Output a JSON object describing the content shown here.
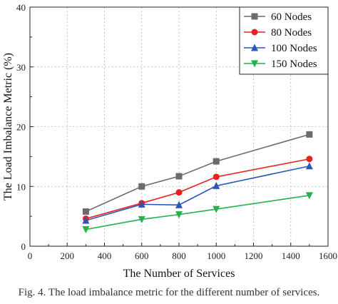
{
  "chart_data": {
    "type": "line",
    "xlabel": "The Number of Services",
    "ylabel": "The Load Imbalance Metric (%)",
    "xlim": [
      0,
      1600
    ],
    "ylim": [
      0,
      40
    ],
    "xticks": [
      0,
      200,
      400,
      600,
      800,
      1000,
      1200,
      1400,
      1600
    ],
    "yticks": [
      0,
      10,
      20,
      30,
      40
    ],
    "grid": true,
    "legend_position": "top-right",
    "x": [
      300,
      600,
      800,
      1000,
      1500
    ],
    "series": [
      {
        "name": "60 Nodes",
        "values": [
          5.8,
          10.0,
          11.7,
          14.2,
          18.7
        ],
        "color": "#6b6b6b",
        "marker": "square"
      },
      {
        "name": "80 Nodes",
        "values": [
          4.6,
          7.2,
          9.0,
          11.6,
          14.6
        ],
        "color": "#e8201f",
        "marker": "circle"
      },
      {
        "name": "100 Nodes",
        "values": [
          4.3,
          7.0,
          6.9,
          10.1,
          13.4
        ],
        "color": "#2b56b8",
        "marker": "triangle-up"
      },
      {
        "name": "150 Nodes",
        "values": [
          2.8,
          4.5,
          5.3,
          6.2,
          8.5
        ],
        "color": "#22b14c",
        "marker": "triangle-down"
      }
    ]
  },
  "caption": "Fig. 4.   The load imbalance metric for the different number of services."
}
